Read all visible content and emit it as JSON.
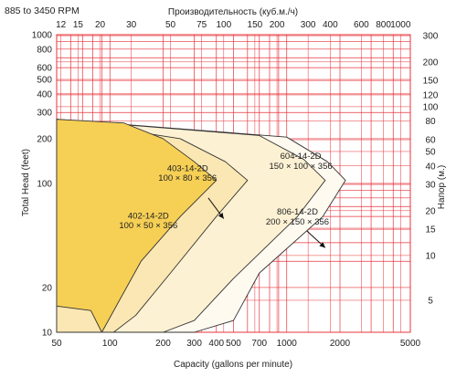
{
  "speed_range": "885 to 3450 RPM",
  "chart_data": {
    "type": "area",
    "title": "",
    "xlabel": "Capacity (gallons per minute)",
    "ylabel": "Total Head (feet)",
    "x2label": "Производительность (куб.м./ч)",
    "y2label": "Напор (м.)",
    "x_scale": "log",
    "y_scale": "log",
    "xlim": [
      50,
      5000
    ],
    "ylim": [
      10,
      1000
    ],
    "x_ticks": [
      50,
      100,
      200,
      300,
      400,
      500,
      700,
      1000,
      2000,
      5000
    ],
    "y_ticks": [
      10,
      20,
      100,
      200,
      300,
      400,
      500,
      600,
      800,
      1000
    ],
    "x2_ticks": [
      12,
      15,
      20,
      30,
      50,
      75,
      100,
      150,
      200,
      300,
      400,
      600,
      800,
      1000
    ],
    "y2_ticks": [
      5,
      10,
      15,
      20,
      30,
      40,
      50,
      60,
      80,
      100,
      120,
      150,
      200,
      300
    ],
    "grid": true,
    "colors": {
      "grid": "#e8333a",
      "model_402": "#f6cf55",
      "model_403": "#fbe7b3",
      "model_604": "#fdf1d3",
      "model_806": "#fffaf0",
      "outline": "#333333"
    },
    "series": [
      {
        "name": "806-14-2D",
        "spec": "200 × 150 × 356",
        "envelope": [
          [
            50,
            270
          ],
          [
            1000,
            205
          ],
          [
            1700,
            140
          ],
          [
            2150,
            105
          ],
          [
            1600,
            60
          ],
          [
            700,
            25
          ],
          [
            500,
            12
          ],
          [
            300,
            10
          ],
          [
            50,
            10
          ]
        ]
      },
      {
        "name": "604-14-2D",
        "spec": "150 × 100 × 356",
        "envelope": [
          [
            50,
            270
          ],
          [
            700,
            210
          ],
          [
            1250,
            145
          ],
          [
            1650,
            105
          ],
          [
            1150,
            60
          ],
          [
            500,
            23
          ],
          [
            300,
            12
          ],
          [
            200,
            10
          ],
          [
            50,
            10
          ]
        ]
      },
      {
        "name": "403-14-2D",
        "spec": "100 × 80 × 356",
        "envelope": [
          [
            50,
            270
          ],
          [
            250,
            200
          ],
          [
            450,
            140
          ],
          [
            600,
            105
          ],
          [
            400,
            60
          ],
          [
            220,
            25
          ],
          [
            140,
            13
          ],
          [
            105,
            10
          ],
          [
            50,
            10
          ]
        ]
      },
      {
        "name": "402-14-2D",
        "spec": "100 × 50 × 356",
        "envelope": [
          [
            50,
            270
          ],
          [
            120,
            255
          ],
          [
            200,
            200
          ],
          [
            300,
            140
          ],
          [
            400,
            105
          ],
          [
            250,
            60
          ],
          [
            150,
            30
          ],
          [
            90,
            10
          ],
          [
            78,
            14
          ],
          [
            50,
            15
          ]
        ]
      }
    ]
  }
}
